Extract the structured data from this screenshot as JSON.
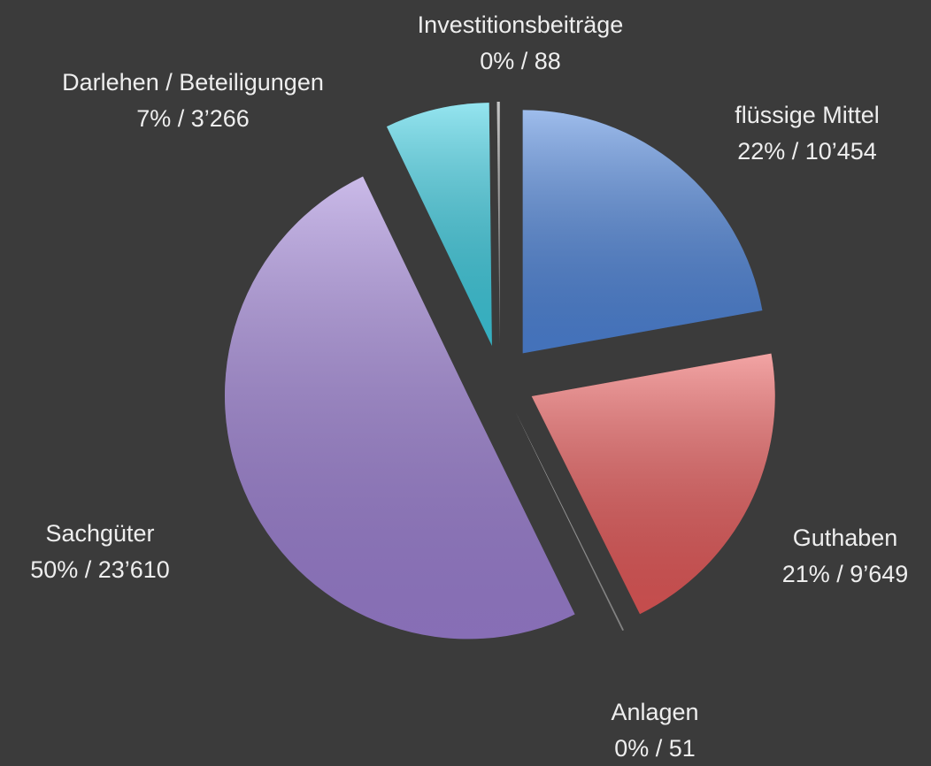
{
  "chart_data": {
    "type": "pie",
    "categories": [
      "flüssige Mittel",
      "Guthaben",
      "Anlagen",
      "Sachgüter",
      "Darlehen / Beteiligungen",
      "Investitionsbeiträge"
    ],
    "values": [
      10454,
      9649,
      51,
      23610,
      3266,
      88
    ],
    "value_labels": [
      "22% / 10’454",
      "21% / 9’649",
      "0% / 51",
      "50% / 23’610",
      "7% / 3’266",
      "0% / 88"
    ],
    "colors": [
      "#4f86dc",
      "#e85a5a",
      "#9a9a9a",
      "#9f82d6",
      "#3ecfe3",
      "#9a9a9a"
    ]
  }
}
